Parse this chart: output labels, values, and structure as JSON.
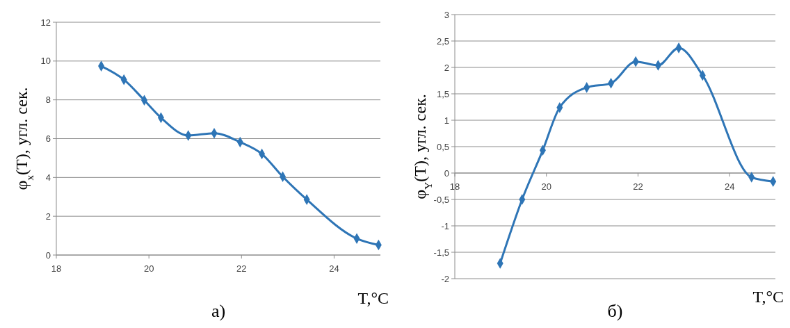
{
  "chart_data": [
    {
      "type": "line",
      "title": "а)",
      "xlabel": "T,°C",
      "ylabel": "φ$_{x}$(T), угл. сек.",
      "x": [
        18.97,
        19.46,
        19.9,
        20.26,
        20.85,
        21.41,
        21.97,
        22.44,
        22.89,
        23.41,
        24.49,
        24.96
      ],
      "series": [
        {
          "color": "#2e75b6",
          "values": [
            9.74,
            9.04,
            7.98,
            7.08,
            6.16,
            6.28,
            5.82,
            5.21,
            4.04,
            2.86,
            0.85,
            0.52
          ]
        }
      ],
      "xlim": [
        18,
        25
      ],
      "xticks": [
        18,
        20,
        22,
        24
      ],
      "ylim": [
        0,
        12
      ],
      "yticks": [
        0,
        2,
        4,
        6,
        8,
        10,
        12
      ],
      "grid": "y",
      "marker": "diamond",
      "line_style": "solid"
    },
    {
      "type": "line",
      "title": "б)",
      "xlabel": "T,°C",
      "ylabel": "φ$_{Y}$(T), угл. сек.",
      "x": [
        18.99,
        19.47,
        19.92,
        20.29,
        20.88,
        21.41,
        21.95,
        22.44,
        22.89,
        23.41,
        24.48,
        24.95
      ],
      "series": [
        {
          "color": "#2e75b6",
          "values": [
            -1.71,
            -0.5,
            0.43,
            1.24,
            1.62,
            1.7,
            2.11,
            2.04,
            2.37,
            1.85,
            -0.08,
            -0.16
          ]
        }
      ],
      "xlim": [
        18,
        25
      ],
      "xticks": [
        18,
        20,
        22,
        24
      ],
      "ylim": [
        -2,
        3
      ],
      "yticks": [
        -2,
        {
          "value": -1.5,
          "label": "-1,5"
        },
        -1,
        {
          "value": -0.5,
          "label": "-0,5"
        },
        0,
        {
          "value": 0.5,
          "label": "0,5"
        },
        1,
        {
          "value": 1.5,
          "label": "1,5"
        },
        2,
        {
          "value": 2.5,
          "label": "2,5"
        },
        3
      ],
      "grid": "y",
      "marker": "diamond",
      "line_style": "solid"
    }
  ]
}
